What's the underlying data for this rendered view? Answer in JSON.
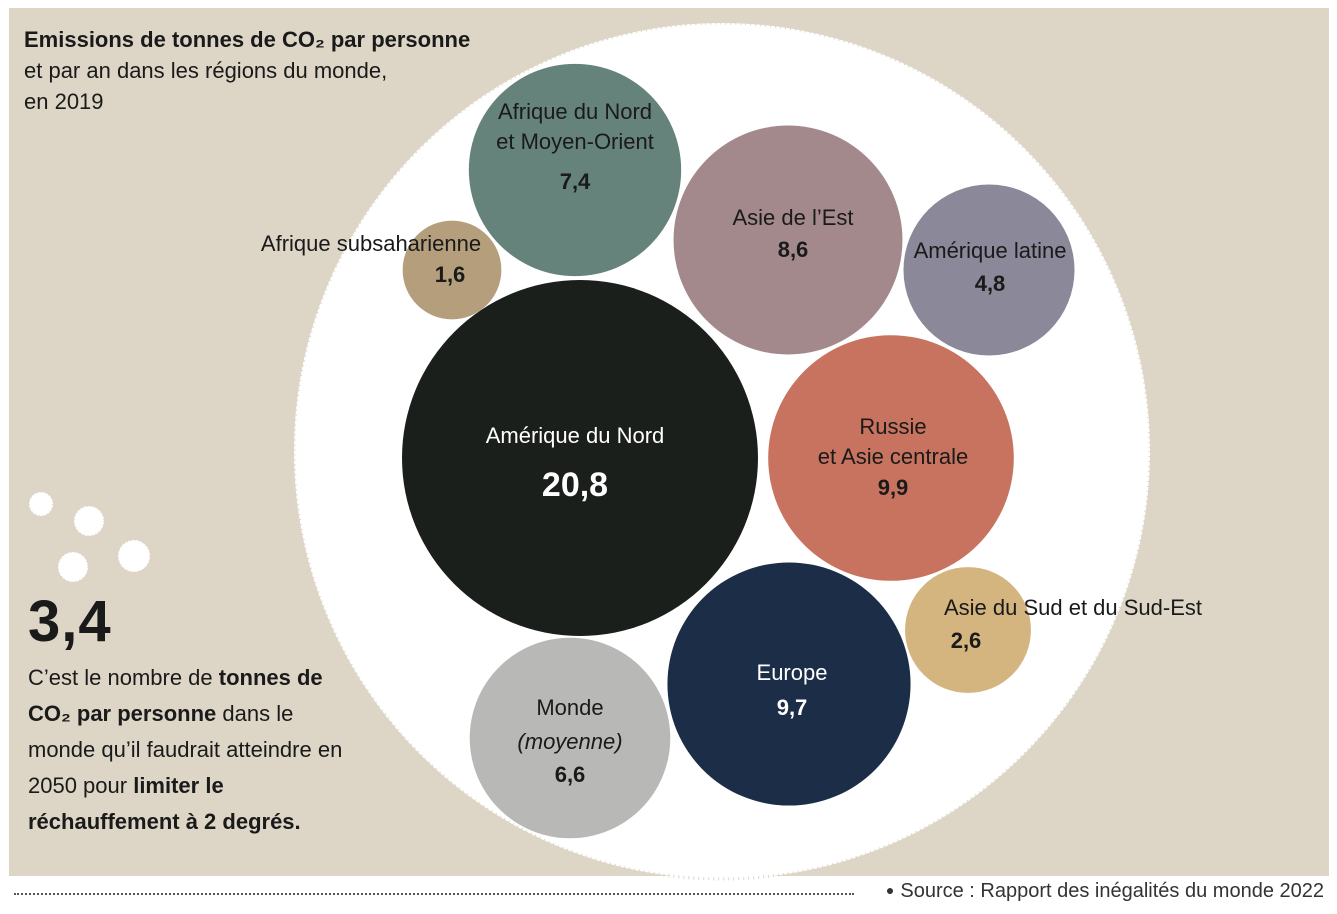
{
  "header": {
    "title": "Emissions de tonnes de CO₂ par personne",
    "subtitle_line1": "et par an dans les régions du monde,",
    "subtitle_line2": "en 2019"
  },
  "callout": {
    "value": "3,4",
    "text1": "C’est le nombre de ",
    "bold1": "tonnes de CO₂ par personne",
    "text2": " dans le monde qu’il faudrait atteindre en 2050 pour ",
    "bold2": "limiter le réchauffement à 2 degrés."
  },
  "footer": {
    "source": "Source : Rapport des inégalités du monde 2022"
  },
  "chart_data": {
    "type": "bubble",
    "unit": "tonnes de CO₂ par personne et par an",
    "year": 2019,
    "series": [
      {
        "name": "Amérique du Nord",
        "label_lines": [
          "Amérique du Nord"
        ],
        "value": 20.8,
        "value_label": "20,8",
        "color": "#1b1f1b",
        "text_color": "#ffffff"
      },
      {
        "name": "Russie et Asie centrale",
        "label_lines": [
          "Russie",
          "et Asie centrale"
        ],
        "value": 9.9,
        "value_label": "9,9",
        "color": "#c7735f",
        "text_color": "#1a1a1a"
      },
      {
        "name": "Europe",
        "label_lines": [
          "Europe"
        ],
        "value": 9.7,
        "value_label": "9,7",
        "color": "#1b2d47",
        "text_color": "#ffffff"
      },
      {
        "name": "Asie de l’Est",
        "label_lines": [
          "Asie de l’Est"
        ],
        "value": 8.6,
        "value_label": "8,6",
        "color": "#a3898c",
        "text_color": "#1a1a1a"
      },
      {
        "name": "Afrique du Nord et Moyen-Orient",
        "label_lines": [
          "Afrique du Nord",
          "et Moyen-Orient"
        ],
        "value": 7.4,
        "value_label": "7,4",
        "color": "#65837b",
        "text_color": "#1a1a1a"
      },
      {
        "name": "Monde (moyenne)",
        "label_lines": [
          "Monde",
          "(moyenne)"
        ],
        "value": 6.6,
        "value_label": "6,6",
        "color": "#b8b8b7",
        "text_color": "#1a1a1a"
      },
      {
        "name": "Amérique latine",
        "label_lines": [
          "Amérique latine"
        ],
        "value": 4.8,
        "value_label": "4,8",
        "color": "#8a8899",
        "text_color": "#1a1a1a"
      },
      {
        "name": "Asie du Sud et du Sud-Est",
        "label_lines": [
          "Asie du Sud et du Sud-Est"
        ],
        "value": 2.6,
        "value_label": "2,6",
        "color": "#d4b47f",
        "text_color": "#1a1a1a"
      },
      {
        "name": "Afrique subsaharienne",
        "label_lines": [
          "Afrique subsaharienne"
        ],
        "value": 1.6,
        "value_label": "1,6",
        "color": "#b59e7c",
        "text_color": "#1a1a1a"
      }
    ]
  }
}
